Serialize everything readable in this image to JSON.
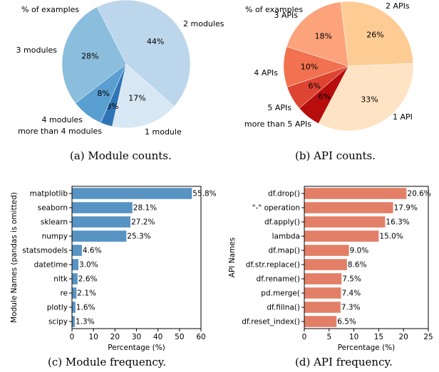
{
  "chart_data": [
    {
      "type": "pie",
      "title": "% of examples",
      "caption": "(a)  Module counts.",
      "slices": [
        {
          "label": "2 modules",
          "value": 44,
          "pct_text": "44%",
          "color": "#bcd6ec"
        },
        {
          "label": "1 module",
          "value": 17,
          "pct_text": "17%",
          "color": "#d7e7f4"
        },
        {
          "label": "more than 4 modules",
          "value": 3,
          "pct_text": "3%",
          "color": "#2f74b5"
        },
        {
          "label": "4 modules",
          "value": 8,
          "pct_text": "8%",
          "color": "#5a9fd1"
        },
        {
          "label": "3 modules",
          "value": 28,
          "pct_text": "28%",
          "color": "#8bbddc"
        }
      ]
    },
    {
      "type": "pie",
      "title": "% of examples",
      "caption": "(b)  API counts.",
      "slices": [
        {
          "label": "2 APIs",
          "value": 26,
          "pct_text": "26%",
          "color": "#fdcc94"
        },
        {
          "label": "1 API",
          "value": 33,
          "pct_text": "33%",
          "color": "#fee3c4"
        },
        {
          "label": "more than 5 APIs",
          "value": 6,
          "pct_text": "6%",
          "color": "#b70d0d"
        },
        {
          "label": "5 APIs",
          "value": 6,
          "pct_text": "6%",
          "color": "#dd4431"
        },
        {
          "label": "4 APIs",
          "value": 10,
          "pct_text": "10%",
          "color": "#f2714f"
        },
        {
          "label": "3 APIs",
          "value": 18,
          "pct_text": "18%",
          "color": "#fca37c"
        }
      ]
    },
    {
      "type": "bar",
      "orientation": "horizontal",
      "caption": "(c)  Module frequency.",
      "xlabel": "Percentage (%)",
      "ylabel": "Module Names (pandas is omitted)",
      "xlim": [
        0,
        60
      ],
      "xticks": [
        0,
        10,
        20,
        30,
        40,
        50,
        60
      ],
      "color": "#5793c3",
      "categories": [
        "matplotlib",
        "seaborn",
        "sklearn",
        "numpy",
        "statsmodels",
        "datetime",
        "nltk",
        "re",
        "plotly",
        "scipy"
      ],
      "values": [
        55.8,
        28.1,
        27.2,
        25.3,
        4.6,
        3.0,
        2.6,
        2.1,
        1.6,
        1.3
      ],
      "value_labels": [
        "55.8%",
        "28.1%",
        "27.2%",
        "25.3%",
        "4.6%",
        "3.0%",
        "2.6%",
        "2.1%",
        "1.6%",
        "1.3%"
      ]
    },
    {
      "type": "bar",
      "orientation": "horizontal",
      "caption": "(d)  API frequency.",
      "xlabel": "Percentage (%)",
      "ylabel": "API Names",
      "xlim": [
        0,
        25
      ],
      "xticks": [
        0,
        5,
        10,
        15,
        20,
        25
      ],
      "color": "#e37f67",
      "categories": [
        "df.drop()",
        "\"-\" operation",
        "df.apply()",
        "lambda",
        "df.map()",
        "df.str.replace()",
        "df.rename()",
        "pd.merge(",
        "df.fillna()",
        "df.reset_index()"
      ],
      "values": [
        20.6,
        17.9,
        16.3,
        15.0,
        9.0,
        8.6,
        7.5,
        7.4,
        7.3,
        6.5
      ],
      "value_labels": [
        "20.6%",
        "17.9%",
        "16.3%",
        "15.0%",
        "9.0%",
        "8.6%",
        "7.5%",
        "7.4%",
        "7.3%",
        "6.5%"
      ]
    }
  ]
}
